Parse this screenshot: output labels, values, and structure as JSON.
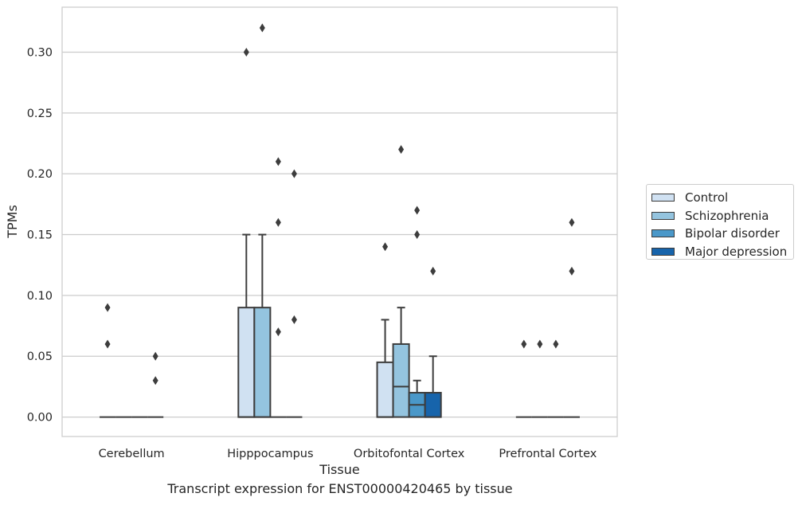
{
  "caption": "Transcript expression for ENST00000420465 by tissue",
  "chart_data": {
    "type": "box",
    "xlabel": "Tissue",
    "ylabel": "TPMs",
    "categories": [
      "Cerebellum",
      "Hipppocampus",
      "Orbitofontal Cortex",
      "Prefrontal Cortex"
    ],
    "ylim": [
      -0.016,
      0.337
    ],
    "yticks": [
      0.0,
      0.05,
      0.1,
      0.15,
      0.2,
      0.25,
      0.3
    ],
    "ytick_labels": [
      "0.00",
      "0.05",
      "0.10",
      "0.15",
      "0.20",
      "0.25",
      "0.30"
    ],
    "grid": "horizontal",
    "legend_position": "right",
    "series": [
      {
        "name": "Control",
        "color": "#d0e1f2",
        "boxes": [
          {
            "q1": 0,
            "median": 0,
            "q3": 0,
            "whislo": 0,
            "whishi": 0,
            "fliers": [
              0.09,
              0.06
            ]
          },
          {
            "q1": 0,
            "median": 0,
            "q3": 0.09,
            "whislo": 0,
            "whishi": 0.15,
            "fliers": [
              0.3
            ]
          },
          {
            "q1": 0,
            "median": 0,
            "q3": 0.045,
            "whislo": 0,
            "whishi": 0.08,
            "fliers": [
              0.14
            ]
          },
          {
            "q1": 0,
            "median": 0,
            "q3": 0,
            "whislo": 0,
            "whishi": 0,
            "fliers": [
              0.06
            ]
          }
        ]
      },
      {
        "name": "Schizophrenia",
        "color": "#94c4df",
        "boxes": [
          {
            "q1": 0,
            "median": 0,
            "q3": 0,
            "whislo": 0,
            "whishi": 0,
            "fliers": []
          },
          {
            "q1": 0,
            "median": 0,
            "q3": 0.09,
            "whislo": 0,
            "whishi": 0.15,
            "fliers": [
              0.32
            ]
          },
          {
            "q1": 0,
            "median": 0.025,
            "q3": 0.06,
            "whislo": 0,
            "whishi": 0.09,
            "fliers": [
              0.22
            ]
          },
          {
            "q1": 0,
            "median": 0,
            "q3": 0,
            "whislo": 0,
            "whishi": 0,
            "fliers": [
              0.06
            ]
          }
        ]
      },
      {
        "name": "Bipolar disorder",
        "color": "#4a98c9",
        "boxes": [
          {
            "q1": 0,
            "median": 0,
            "q3": 0,
            "whislo": 0,
            "whishi": 0,
            "fliers": []
          },
          {
            "q1": 0,
            "median": 0,
            "q3": 0,
            "whislo": 0,
            "whishi": 0,
            "fliers": [
              0.21,
              0.16,
              0.07
            ]
          },
          {
            "q1": 0,
            "median": 0.01,
            "q3": 0.02,
            "whislo": 0,
            "whishi": 0.03,
            "fliers": [
              0.17,
              0.15
            ]
          },
          {
            "q1": 0,
            "median": 0,
            "q3": 0,
            "whislo": 0,
            "whishi": 0,
            "fliers": [
              0.06
            ]
          }
        ]
      },
      {
        "name": "Major depression",
        "color": "#1764ab",
        "boxes": [
          {
            "q1": 0,
            "median": 0,
            "q3": 0,
            "whislo": 0,
            "whishi": 0,
            "fliers": [
              0.05,
              0.03
            ]
          },
          {
            "q1": 0,
            "median": 0,
            "q3": 0,
            "whislo": 0,
            "whishi": 0,
            "fliers": [
              0.2,
              0.08
            ]
          },
          {
            "q1": 0,
            "median": 0,
            "q3": 0.02,
            "whislo": 0,
            "whishi": 0.05,
            "fliers": [
              0.12
            ]
          },
          {
            "q1": 0,
            "median": 0,
            "q3": 0,
            "whislo": 0,
            "whishi": 0,
            "fliers": [
              0.16,
              0.12
            ]
          }
        ]
      }
    ]
  }
}
